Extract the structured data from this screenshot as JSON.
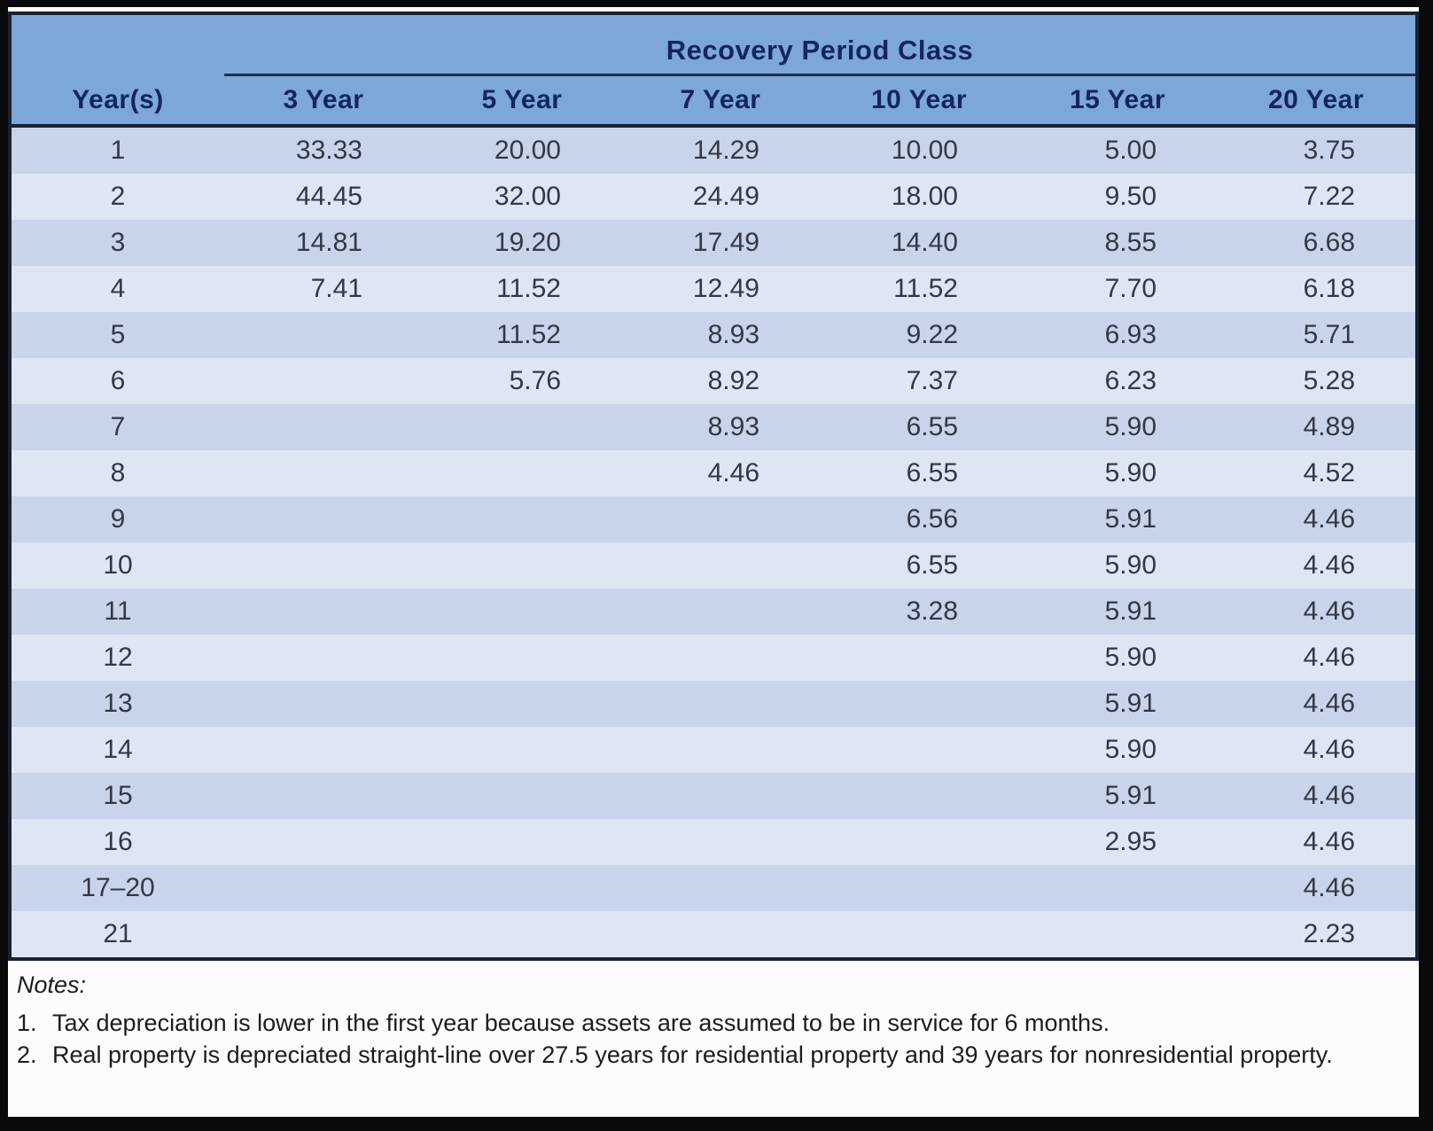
{
  "table": {
    "title": "Recovery Period Class",
    "col_headers": [
      "Year(s)",
      "3 Year",
      "5 Year",
      "7 Year",
      "10 Year",
      "15 Year",
      "20 Year"
    ],
    "rows": [
      {
        "year": "1",
        "values": [
          "33.33",
          "20.00",
          "14.29",
          "10.00",
          "5.00",
          "3.75"
        ]
      },
      {
        "year": "2",
        "values": [
          "44.45",
          "32.00",
          "24.49",
          "18.00",
          "9.50",
          "7.22"
        ]
      },
      {
        "year": "3",
        "values": [
          "14.81",
          "19.20",
          "17.49",
          "14.40",
          "8.55",
          "6.68"
        ]
      },
      {
        "year": "4",
        "values": [
          "7.41",
          "11.52",
          "12.49",
          "11.52",
          "7.70",
          "6.18"
        ]
      },
      {
        "year": "5",
        "values": [
          "",
          "11.52",
          "8.93",
          "9.22",
          "6.93",
          "5.71"
        ]
      },
      {
        "year": "6",
        "values": [
          "",
          "5.76",
          "8.92",
          "7.37",
          "6.23",
          "5.28"
        ]
      },
      {
        "year": "7",
        "values": [
          "",
          "",
          "8.93",
          "6.55",
          "5.90",
          "4.89"
        ]
      },
      {
        "year": "8",
        "values": [
          "",
          "",
          "4.46",
          "6.55",
          "5.90",
          "4.52"
        ]
      },
      {
        "year": "9",
        "values": [
          "",
          "",
          "",
          "6.56",
          "5.91",
          "4.46"
        ]
      },
      {
        "year": "10",
        "values": [
          "",
          "",
          "",
          "6.55",
          "5.90",
          "4.46"
        ]
      },
      {
        "year": "11",
        "values": [
          "",
          "",
          "",
          "3.28",
          "5.91",
          "4.46"
        ]
      },
      {
        "year": "12",
        "values": [
          "",
          "",
          "",
          "",
          "5.90",
          "4.46"
        ]
      },
      {
        "year": "13",
        "values": [
          "",
          "",
          "",
          "",
          "5.91",
          "4.46"
        ]
      },
      {
        "year": "14",
        "values": [
          "",
          "",
          "",
          "",
          "5.90",
          "4.46"
        ]
      },
      {
        "year": "15",
        "values": [
          "",
          "",
          "",
          "",
          "5.91",
          "4.46"
        ]
      },
      {
        "year": "16",
        "values": [
          "",
          "",
          "",
          "",
          "2.95",
          "4.46"
        ]
      },
      {
        "year": "17–20",
        "values": [
          "",
          "",
          "",
          "",
          "",
          "4.46"
        ]
      },
      {
        "year": "21",
        "values": [
          "",
          "",
          "",
          "",
          "",
          "2.23"
        ]
      }
    ]
  },
  "notes": {
    "label": "Notes:",
    "items": [
      {
        "num": "1.",
        "text": "Tax depreciation is lower in the first year because assets are assumed to be in service for 6 months."
      },
      {
        "num": "2.",
        "text": "Real property is depreciated straight-line over 27.5 years for residential property and 39 years for nonresidential property."
      }
    ]
  },
  "colors": {
    "header_blue": "#7da7d9",
    "row_dark": "#c7d4ea",
    "row_light": "#dde6f3",
    "border_dark": "#1a2132",
    "header_text": "#13265b",
    "body_text": "#333845",
    "frame_black": "#0a0a0a"
  }
}
